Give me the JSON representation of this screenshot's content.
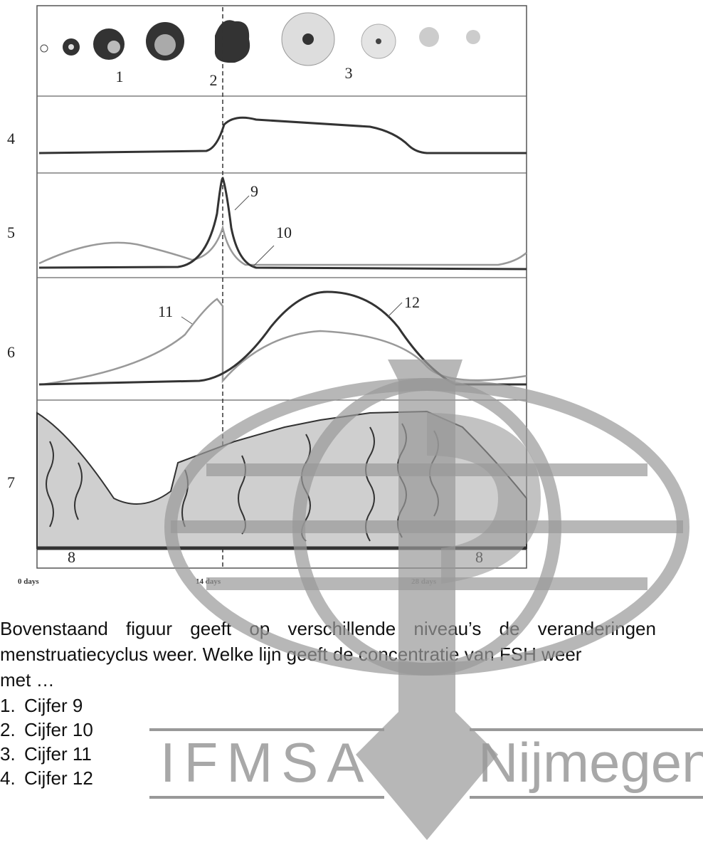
{
  "figure": {
    "stage_labels": [
      "1",
      "2",
      "3"
    ],
    "row_labels": [
      "4",
      "5",
      "6",
      "7"
    ],
    "line_labels": [
      "9",
      "10",
      "11",
      "12"
    ],
    "layer_labels": [
      "8",
      "8"
    ],
    "day_labels": [
      "0 days",
      "14 days",
      "28 days"
    ]
  },
  "question": {
    "lines": [
      "Bovenstaand figuur geeft op verschillende niveau’s de veranderingen",
      "menstruatiecyclus weer. Welke lijn geeft de concentratie van FSH weer",
      "met …"
    ]
  },
  "options": [
    {
      "number": "1.",
      "text": "Cijfer 9"
    },
    {
      "number": "2.",
      "text": "Cijfer 10"
    },
    {
      "number": "3.",
      "text": "Cijfer 11"
    },
    {
      "number": "4.",
      "text": "Cijfer 12"
    }
  ],
  "watermark": {
    "left": "IFMSA",
    "right": "Nijmegen"
  }
}
